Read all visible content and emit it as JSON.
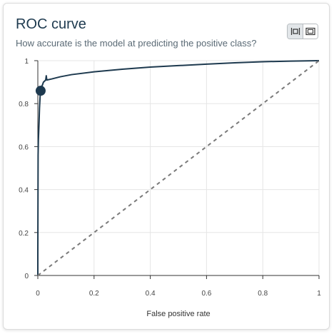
{
  "header": {
    "title": "ROC curve",
    "subtitle": "How accurate is the model at predicting the positive class?"
  },
  "toggle": {
    "options": [
      "fit-to-width-icon",
      "full-view-icon"
    ],
    "active": 0
  },
  "colors": {
    "curve": "#1e3a4f",
    "diagonal": "#7a7a7a",
    "grid": "#e5e5e5",
    "axis": "#333333"
  },
  "chart_data": {
    "type": "line",
    "title": "",
    "xlabel": "False positive rate",
    "ylabel": "",
    "xlim": [
      0,
      1
    ],
    "ylim": [
      0,
      1
    ],
    "grid": true,
    "x_ticks": [
      "0",
      "0.2",
      "0.4",
      "0.6",
      "0.8",
      "1"
    ],
    "y_ticks": [
      "0",
      "0.2",
      "0.4",
      "0.6",
      "0.8",
      "1"
    ],
    "series": [
      {
        "points": [
          [
            0,
            0
          ],
          [
            0,
            0.1
          ],
          [
            0.001,
            0.56
          ],
          [
            0.002,
            0.63
          ],
          [
            0.004,
            0.7
          ],
          [
            0.006,
            0.78
          ],
          [
            0.008,
            0.83
          ],
          [
            0.01,
            0.86
          ],
          [
            0.013,
            0.88
          ],
          [
            0.016,
            0.885
          ],
          [
            0.02,
            0.9
          ],
          [
            0.024,
            0.905
          ],
          [
            0.028,
            0.91
          ],
          [
            0.03,
            0.93
          ],
          [
            0.032,
            0.91
          ],
          [
            0.05,
            0.915
          ],
          [
            0.08,
            0.925
          ],
          [
            0.12,
            0.935
          ],
          [
            0.2,
            0.948
          ],
          [
            0.3,
            0.96
          ],
          [
            0.4,
            0.97
          ],
          [
            0.5,
            0.977
          ],
          [
            0.6,
            0.984
          ],
          [
            0.7,
            0.99
          ],
          [
            0.8,
            0.995
          ],
          [
            0.9,
            0.998
          ],
          [
            1,
            1
          ]
        ]
      },
      {
        "style": "dashed",
        "points": [
          [
            0,
            0
          ],
          [
            1,
            1
          ]
        ]
      }
    ],
    "highlight_point": [
      0.01,
      0.86
    ]
  }
}
